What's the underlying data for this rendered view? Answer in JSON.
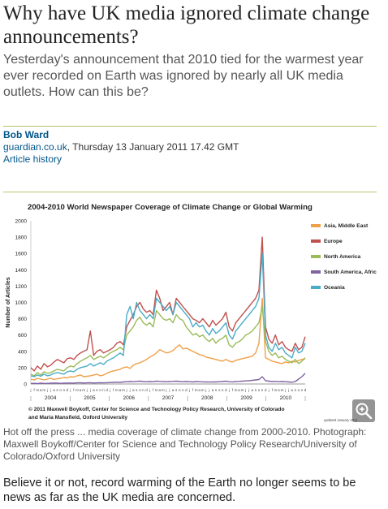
{
  "article": {
    "headline": "Why have UK media ignored climate change announcements?",
    "standfirst": "Yesterday's announcement that 2010 tied for the warmest year ever recorded on Earth was ignored by nearly all UK media outlets. How can this be?",
    "author": "Bob Ward",
    "source": "guardian.co.uk",
    "date": ", Thursday 13 January 2011 17.42 GMT",
    "history_link": "Article history",
    "caption": "Hot off the press ... media coverage of climate change from 2000-2010. Photograph: Maxwell Boykoff/Center for Science and Technology Policy Research/University of Colorado/Oxford University",
    "body": "Believe it or not, record warming of the Earth no longer seems to be news as far as the UK media are concerned."
  },
  "icons": {
    "zoom": "magnifier-plus-icon"
  },
  "chart_data": {
    "type": "line",
    "title": "2004-2010 World Newspaper Coverage of Climate Change or Global Warming",
    "ylabel": "Number of Articles",
    "xlabel": "",
    "ylim": [
      0,
      2000
    ],
    "yticks": [
      0,
      200,
      400,
      600,
      800,
      1000,
      1200,
      1400,
      1600,
      1800,
      2000
    ],
    "years": [
      "2004",
      "2005",
      "2006",
      "2007",
      "2008",
      "2009",
      "2010"
    ],
    "month_letters": "jfmamjjasond",
    "credit_line1": "© 2011 Maxwell Boykoff, Center for Science and Technology Policy Research, University of Colorado",
    "credit_line2": "and Maria Mansfield, Oxford University",
    "updated_note": "updated January 2011",
    "legend_position": "right",
    "series": [
      {
        "name": "Asia, Middle East",
        "color": "#f0a048",
        "values": [
          60,
          50,
          70,
          60,
          50,
          60,
          70,
          55,
          65,
          70,
          80,
          75,
          90,
          85,
          100,
          110,
          90,
          95,
          100,
          110,
          120,
          100,
          110,
          130,
          150,
          160,
          170,
          180,
          200,
          210,
          190,
          230,
          250,
          260,
          280,
          300,
          330,
          350,
          380,
          420,
          400,
          380,
          390,
          410,
          450,
          480,
          430,
          440,
          420,
          400,
          380,
          360,
          350,
          330,
          320,
          310,
          300,
          290,
          280,
          300,
          280,
          270,
          290,
          300,
          310,
          320,
          330,
          340,
          380,
          500,
          1050,
          320,
          300,
          280,
          270,
          260,
          250,
          270,
          260,
          280,
          270,
          290,
          300,
          310
        ]
      },
      {
        "name": "Europe",
        "color": "#c0504d",
        "values": [
          200,
          160,
          220,
          180,
          250,
          210,
          230,
          270,
          300,
          280,
          260,
          310,
          320,
          300,
          350,
          380,
          400,
          420,
          650,
          350,
          400,
          420,
          380,
          400,
          420,
          450,
          500,
          520,
          480,
          700,
          780,
          850,
          950,
          1000,
          920,
          880,
          900,
          850,
          1150,
          1050,
          900,
          950,
          1000,
          850,
          1050,
          1000,
          950,
          900,
          850,
          800,
          780,
          750,
          800,
          750,
          700,
          780,
          720,
          760,
          800,
          880,
          700,
          650,
          750,
          800,
          850,
          900,
          950,
          1000,
          1050,
          1150,
          1800,
          700,
          550,
          500,
          600,
          480,
          520,
          450,
          420,
          400,
          500,
          420,
          450,
          580
        ]
      },
      {
        "name": "North America",
        "color": "#9bbb59",
        "values": [
          120,
          100,
          140,
          110,
          150,
          130,
          140,
          160,
          180,
          170,
          160,
          200,
          220,
          210,
          250,
          280,
          300,
          320,
          350,
          300,
          320,
          340,
          320,
          350,
          380,
          400,
          420,
          450,
          420,
          600,
          650,
          700,
          780,
          820,
          750,
          720,
          750,
          700,
          900,
          850,
          800,
          780,
          800,
          750,
          850,
          800,
          780,
          700,
          650,
          600,
          620,
          580,
          600,
          550,
          520,
          560,
          500,
          540,
          560,
          600,
          480,
          450,
          500,
          520,
          550,
          600,
          620,
          650,
          700,
          750,
          950,
          520,
          400,
          350,
          380,
          320,
          340,
          300,
          280,
          260,
          300,
          250,
          280,
          320
        ]
      },
      {
        "name": "South America, Africa",
        "color": "#8064a2",
        "values": [
          5,
          8,
          6,
          10,
          8,
          7,
          10,
          12,
          10,
          8,
          10,
          12,
          12,
          10,
          14,
          15,
          12,
          14,
          16,
          12,
          14,
          15,
          14,
          16,
          18,
          20,
          22,
          20,
          25,
          28,
          30,
          28,
          32,
          35,
          30,
          28,
          30,
          28,
          35,
          32,
          30,
          28,
          30,
          32,
          35,
          30,
          28,
          30,
          28,
          25,
          30,
          28,
          26,
          25,
          24,
          26,
          25,
          28,
          30,
          35,
          28,
          26,
          30,
          32,
          35,
          38,
          40,
          45,
          50,
          55,
          90,
          40,
          35,
          30,
          32,
          28,
          30,
          28,
          25,
          22,
          30,
          60,
          90,
          130
        ]
      },
      {
        "name": "Oceania",
        "color": "#4bacc6",
        "values": [
          100,
          90,
          110,
          95,
          120,
          100,
          110,
          130,
          140,
          130,
          120,
          150,
          160,
          150,
          180,
          200,
          210,
          220,
          250,
          220,
          240,
          260,
          240,
          280,
          300,
          320,
          350,
          380,
          350,
          850,
          950,
          800,
          1000,
          900,
          850,
          800,
          850,
          800,
          1050,
          1000,
          950,
          900,
          950,
          850,
          1000,
          950,
          900,
          850,
          800,
          700,
          750,
          700,
          720,
          650,
          600,
          680,
          620,
          650,
          700,
          750,
          600,
          550,
          650,
          700,
          750,
          800,
          850,
          900,
          950,
          1050,
          1600,
          600,
          450,
          400,
          500,
          420,
          450,
          380,
          350,
          320,
          450,
          380,
          400,
          500
        ]
      }
    ]
  }
}
